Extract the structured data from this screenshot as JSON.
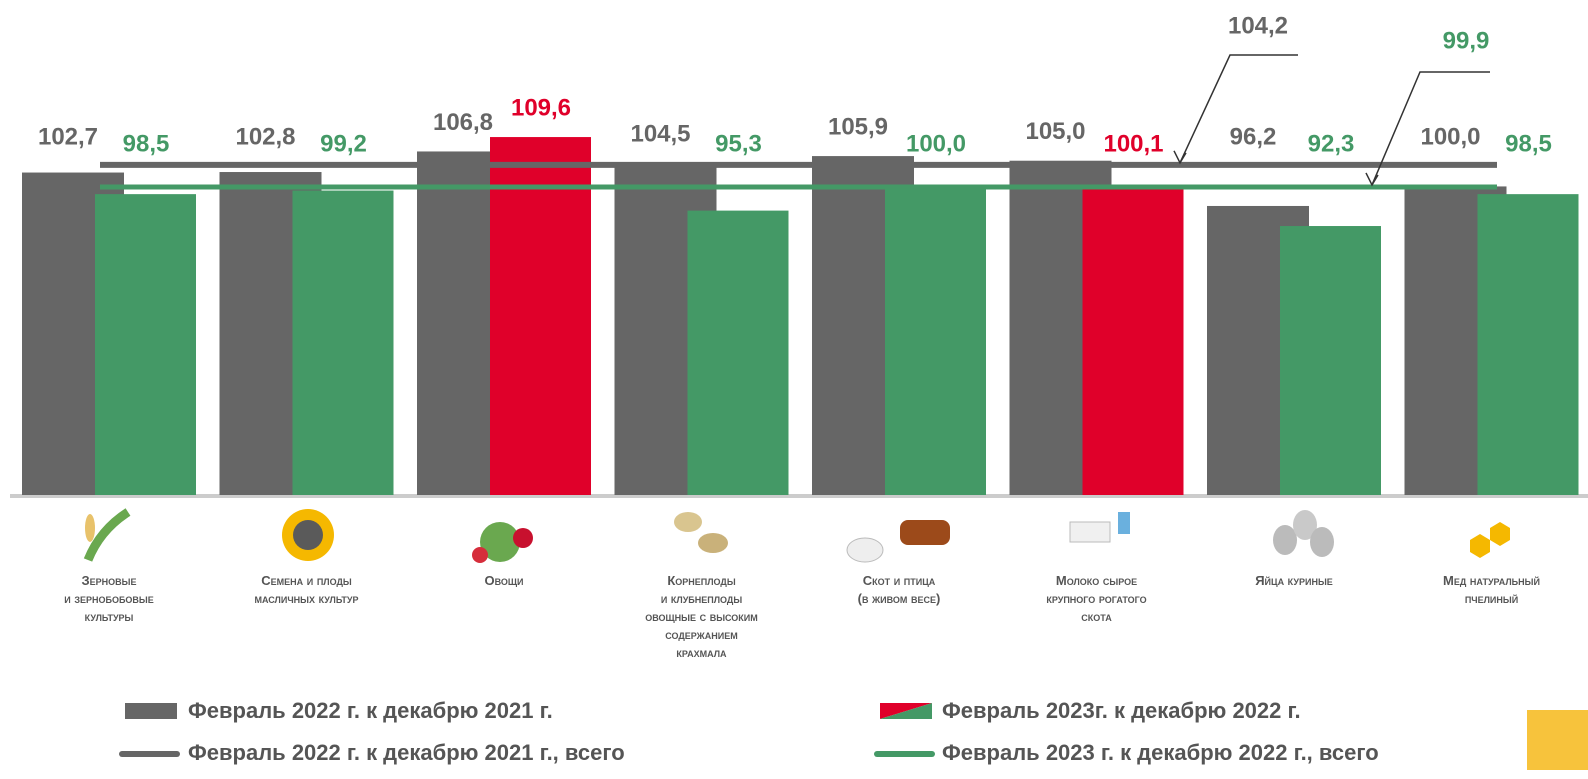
{
  "chart_data": {
    "type": "bar",
    "ylim": [
      40,
      110
    ],
    "categories": [
      "Зерновые\nи зернобобовые\nкультуры",
      "Семена и плоды\nмасличных культур",
      "Овощи",
      "Корнеплоды\nи клубнеплоды\nовощные с высоким\nсодержанием\nкрахмала",
      "Скот и птица\n(в живом весе)",
      "Молоко сырое\nкрупного рогатого\nскота",
      "Яйца куриные",
      "Мед натуральный\nпчелиный"
    ],
    "series": [
      {
        "name": "Февраль 2022 г. к декабрю 2021 г.",
        "color": "#666666",
        "values": [
          102.7,
          102.8,
          106.8,
          104.5,
          105.9,
          105.0,
          96.2,
          100.0
        ],
        "value_labels": [
          "102,7",
          "102,8",
          "106,8",
          "104,5",
          "105,9",
          "105,0",
          "96,2",
          "100,0"
        ]
      },
      {
        "name": "Февраль 2023г. к декабрю 2022 г.",
        "colors": [
          "#449966",
          "#449966",
          "#e0002a",
          "#449966",
          "#449966",
          "#e0002a",
          "#449966",
          "#449966"
        ],
        "values": [
          98.5,
          99.2,
          109.6,
          95.3,
          100.0,
          100.1,
          92.3,
          98.5
        ],
        "value_labels": [
          "98,5",
          "99,2",
          "109,6",
          "95,3",
          "100,0",
          "100,1",
          "92,3",
          "98,5"
        ]
      }
    ],
    "lines": [
      {
        "name": "Февраль 2022 г. к декабрю 2021 г., всего",
        "color": "#666666",
        "value": 104.2,
        "value_label": "104,2"
      },
      {
        "name": "Февраль 2023 г. к декабрю 2022 г., всего",
        "color": "#449966",
        "value": 99.9,
        "value_label": "99,9"
      }
    ]
  }
}
